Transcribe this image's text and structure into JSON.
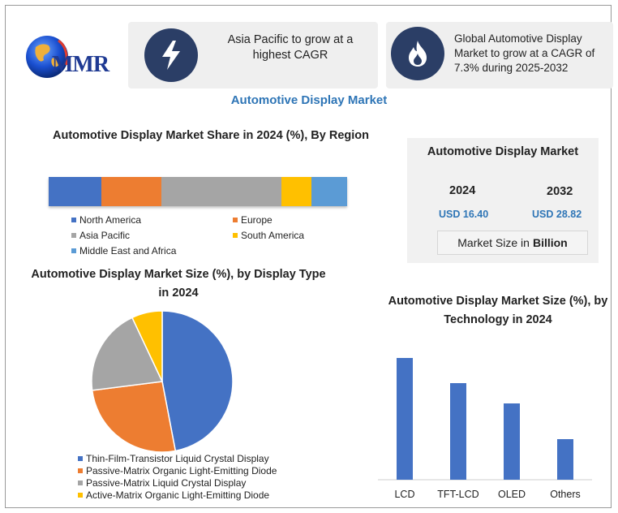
{
  "logo": {
    "text": "MMR",
    "icon": "globe-logo-icon"
  },
  "cards": [
    {
      "icon": "lightning-bolt-icon",
      "text": "Asia Pacific to grow at a highest CAGR"
    },
    {
      "icon": "flame-icon",
      "text": "Global Automotive Display Market to grow at a CAGR of 7.3% during 2025-2032"
    }
  ],
  "main_title": "Automotive Display Market",
  "market_box": {
    "title": "Automotive Display Market",
    "years": [
      "2024",
      "2032"
    ],
    "values": [
      "USD 16.40",
      "USD 28.82"
    ],
    "size_label": "Market Size in",
    "size_unit": "Billion"
  },
  "chart_data": [
    {
      "type": "bar",
      "orientation": "horizontal-stacked",
      "title": "Automotive Display Market Share in 2024 (%), By Region",
      "series": [
        {
          "name": "North America",
          "value": 17.7,
          "color": "#4472c4"
        },
        {
          "name": "Europe",
          "value": 20.2,
          "color": "#ed7d31"
        },
        {
          "name": "Asia Pacific",
          "value": 40.0,
          "color": "#a5a5a5"
        },
        {
          "name": "South America",
          "value": 10.2,
          "color": "#ffc000"
        },
        {
          "name": "Middle East and Africa",
          "value": 11.9,
          "color": "#5b9bd5"
        }
      ],
      "legend_placement": "bottom"
    },
    {
      "type": "pie",
      "title": "Automotive Display Market Size (%), by Display Type in 2024",
      "slices": [
        {
          "name": "Thin-Film-Transistor Liquid Crystal Display",
          "value": 47,
          "color": "#4472c4"
        },
        {
          "name": "Passive-Matrix Organic Light-Emitting Diode",
          "value": 26,
          "color": "#ed7d31"
        },
        {
          "name": "Passive-Matrix Liquid Crystal Display",
          "value": 20,
          "color": "#a5a5a5"
        },
        {
          "name": "Active-Matrix Organic Light-Emitting Diode",
          "value": 7,
          "color": "#ffc000"
        }
      ],
      "legend_placement": "bottom"
    },
    {
      "type": "bar",
      "title": "Automotive Display Market Size (%), by Technology in 2024",
      "categories": [
        "LCD",
        "TFT-LCD",
        "OLED",
        "Others"
      ],
      "values": [
        150,
        119,
        94,
        50
      ],
      "ylim": [
        0,
        160
      ],
      "color": "#4472c4",
      "grid": false
    }
  ]
}
